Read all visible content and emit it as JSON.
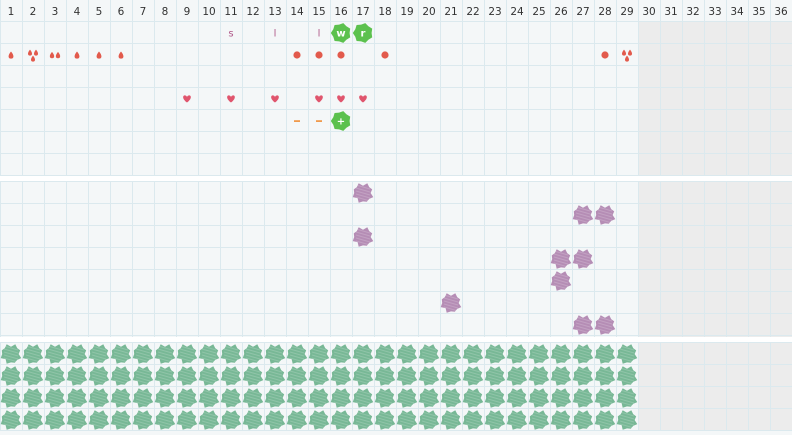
{
  "columns": [
    "1",
    "2",
    "3",
    "4",
    "5",
    "6",
    "7",
    "8",
    "9",
    "10",
    "11",
    "12",
    "13",
    "14",
    "15",
    "16",
    "17",
    "18",
    "19",
    "20",
    "21",
    "22",
    "23",
    "24",
    "25",
    "26",
    "27",
    "28",
    "29",
    "30",
    "31",
    "32",
    "33",
    "34",
    "35",
    "36"
  ],
  "active_day_count": 29,
  "colors": {
    "background": "#f4f7f8",
    "grid_line": "#dbe9ee",
    "header_line": "#b9cdd4",
    "inactive_shade": "#ececec",
    "section_divider": "#ffffff",
    "droplet": "#e25a4c",
    "dot": "#e25a4c",
    "heart": "#e0556d",
    "dash": "#f09a4c",
    "letter_marker": "#b05a8a",
    "green_badge": "#5cc14e",
    "purple_blob": "#b58db5",
    "green_blob": "#78b896"
  },
  "top_section": {
    "rows": [
      {
        "name": "markers-row",
        "cells": [
          {
            "day": 11,
            "kind": "letter",
            "label": "s"
          },
          {
            "day": 13,
            "kind": "letter",
            "label": "l"
          },
          {
            "day": 15,
            "kind": "letter",
            "label": "l"
          },
          {
            "day": 16,
            "kind": "badge",
            "label": "w",
            "icon": "badge-icon"
          },
          {
            "day": 17,
            "kind": "badge",
            "label": "r",
            "icon": "badge-icon"
          }
        ]
      },
      {
        "name": "flow-row",
        "cells": [
          {
            "day": 1,
            "kind": "droplet",
            "count": 1,
            "icon": "droplet-icon"
          },
          {
            "day": 2,
            "kind": "droplet",
            "count": 3,
            "icon": "droplet-icon"
          },
          {
            "day": 3,
            "kind": "droplet",
            "count": 2,
            "icon": "droplet-icon"
          },
          {
            "day": 4,
            "kind": "droplet",
            "count": 1,
            "icon": "droplet-icon"
          },
          {
            "day": 5,
            "kind": "droplet",
            "count": 1,
            "icon": "droplet-icon"
          },
          {
            "day": 6,
            "kind": "droplet",
            "count": 1,
            "icon": "droplet-icon"
          },
          {
            "day": 14,
            "kind": "dot",
            "icon": "dot-icon"
          },
          {
            "day": 15,
            "kind": "dot",
            "icon": "dot-icon"
          },
          {
            "day": 16,
            "kind": "dot",
            "icon": "dot-icon"
          },
          {
            "day": 18,
            "kind": "dot",
            "icon": "dot-icon"
          },
          {
            "day": 28,
            "kind": "dot",
            "icon": "dot-icon"
          },
          {
            "day": 29,
            "kind": "droplet",
            "count": 3,
            "icon": "droplet-icon"
          }
        ]
      },
      {
        "name": "empty-row-a",
        "cells": []
      },
      {
        "name": "intimacy-row",
        "cells": [
          {
            "day": 9,
            "kind": "heart",
            "icon": "heart-icon"
          },
          {
            "day": 11,
            "kind": "heart",
            "icon": "heart-icon"
          },
          {
            "day": 13,
            "kind": "heart",
            "icon": "heart-icon"
          },
          {
            "day": 15,
            "kind": "heart",
            "icon": "heart-icon"
          },
          {
            "day": 16,
            "kind": "heart",
            "icon": "heart-icon"
          },
          {
            "day": 17,
            "kind": "heart",
            "icon": "heart-icon"
          }
        ]
      },
      {
        "name": "test-row",
        "cells": [
          {
            "day": 14,
            "kind": "dash",
            "icon": "dash-icon"
          },
          {
            "day": 15,
            "kind": "dash",
            "icon": "dash-icon"
          },
          {
            "day": 16,
            "kind": "badge",
            "label": "+",
            "icon": "badge-icon"
          }
        ]
      },
      {
        "name": "empty-row-b",
        "cells": []
      },
      {
        "name": "empty-row-c",
        "cells": []
      }
    ]
  },
  "middle_section": {
    "rows": [
      {
        "name": "symptom-row-1",
        "days": [
          17
        ]
      },
      {
        "name": "symptom-row-2",
        "days": [
          27,
          28
        ]
      },
      {
        "name": "symptom-row-3",
        "days": [
          17
        ]
      },
      {
        "name": "symptom-row-4",
        "days": [
          26,
          27
        ]
      },
      {
        "name": "symptom-row-5",
        "days": [
          26
        ]
      },
      {
        "name": "symptom-row-6",
        "days": [
          21
        ]
      },
      {
        "name": "symptom-row-7",
        "days": [
          27,
          28
        ]
      }
    ]
  },
  "bottom_section": {
    "row_count": 4,
    "filled_through_day": 29
  }
}
